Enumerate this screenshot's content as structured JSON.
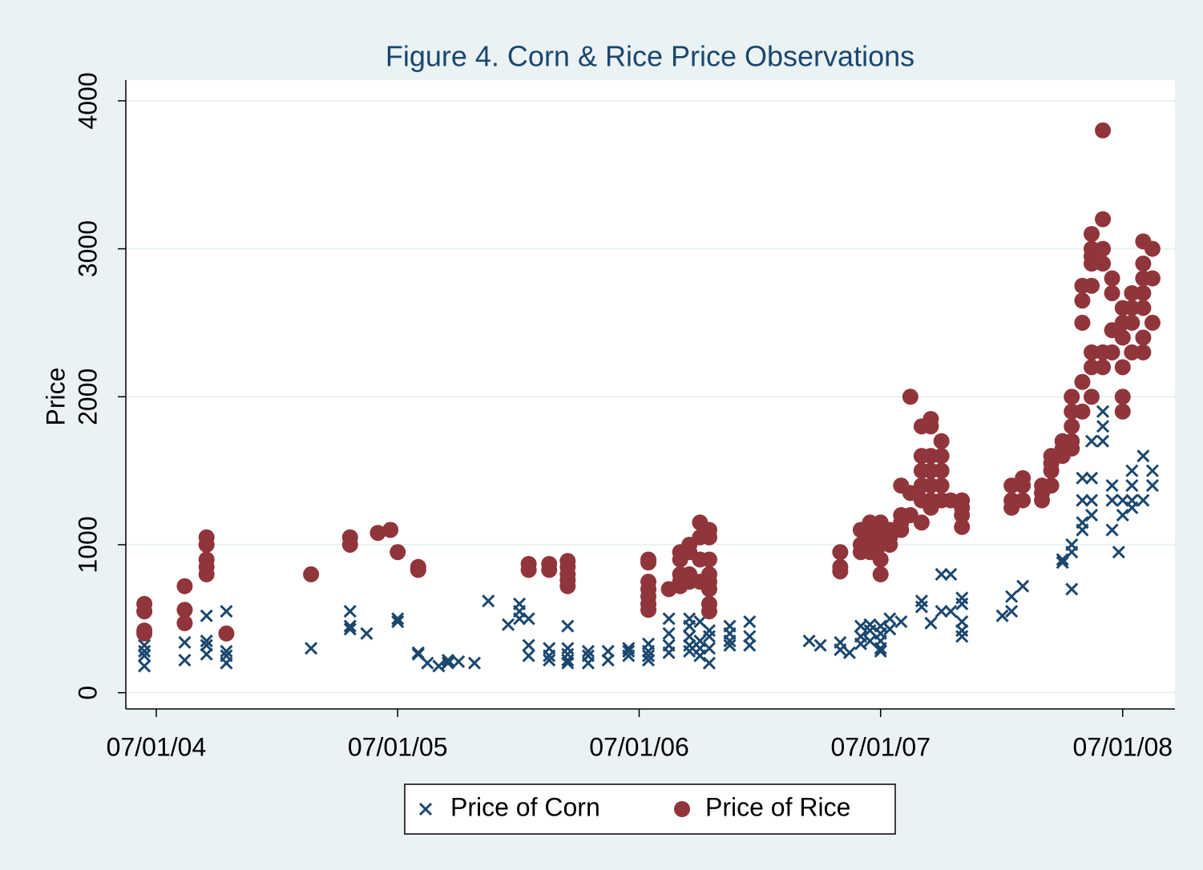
{
  "chart_data": {
    "type": "scatter",
    "title": "Figure 4. Corn & Rice Price Observations",
    "y_label": "Price",
    "xlim": [
      "2004-05-16",
      "2008-09-18"
    ],
    "ylim": [
      -110,
      4140
    ],
    "xticks": [
      {
        "value": "2004-07-01",
        "label": "07/01/04"
      },
      {
        "value": "2005-07-01",
        "label": "07/01/05"
      },
      {
        "value": "2006-07-01",
        "label": "07/01/06"
      },
      {
        "value": "2007-07-01",
        "label": "07/01/07"
      },
      {
        "value": "2008-07-01",
        "label": "07/01/08"
      }
    ],
    "yticks": [
      0,
      1000,
      2000,
      3000,
      4000
    ],
    "grid": true,
    "legend": "bottom",
    "series": [
      {
        "name": "Price of Corn",
        "color": "#1a476f",
        "marker": "x",
        "x": [
          "2004-06-13",
          "2004-06-13",
          "2004-06-13",
          "2004-06-13",
          "2004-08-13",
          "2004-08-13",
          "2004-09-15",
          "2004-09-15",
          "2004-09-15",
          "2004-09-15",
          "2004-10-15",
          "2004-10-15",
          "2004-10-15",
          "2004-10-15",
          "2005-02-20",
          "2005-04-20",
          "2005-04-20",
          "2005-04-20",
          "2005-05-15",
          "2005-07-01",
          "2005-07-01",
          "2005-08-01",
          "2005-08-01",
          "2005-08-15",
          "2005-09-01",
          "2005-09-15",
          "2005-09-15",
          "2005-10-01",
          "2005-10-25",
          "2005-11-15",
          "2005-12-15",
          "2006-01-01",
          "2006-01-01",
          "2006-01-01",
          "2006-01-15",
          "2006-01-15",
          "2006-01-15",
          "2006-02-15",
          "2006-02-15",
          "2006-02-15",
          "2006-03-15",
          "2006-03-15",
          "2006-03-15",
          "2006-03-15",
          "2006-03-15",
          "2006-04-15",
          "2006-04-15",
          "2006-04-15",
          "2006-05-15",
          "2006-05-15",
          "2006-06-15",
          "2006-06-15",
          "2006-06-15",
          "2006-07-15",
          "2006-07-15",
          "2006-07-15",
          "2006-07-15",
          "2006-08-15",
          "2006-08-15",
          "2006-08-15",
          "2006-08-15",
          "2006-09-15",
          "2006-09-15",
          "2006-09-15",
          "2006-09-15",
          "2006-09-15",
          "2006-10-01",
          "2006-10-01",
          "2006-10-01",
          "2006-10-01",
          "2006-10-15",
          "2006-10-15",
          "2006-10-15",
          "2006-10-15",
          "2006-11-15",
          "2006-11-15",
          "2006-11-15",
          "2006-11-15",
          "2006-12-15",
          "2006-12-15",
          "2006-12-15",
          "2007-03-15",
          "2007-04-01",
          "2007-05-01",
          "2007-05-01",
          "2007-05-15",
          "2007-06-01",
          "2007-06-01",
          "2007-06-01",
          "2007-06-15",
          "2007-06-15",
          "2007-06-15",
          "2007-07-01",
          "2007-07-01",
          "2007-07-01",
          "2007-07-01",
          "2007-07-01",
          "2007-07-15",
          "2007-07-15",
          "2007-08-01",
          "2007-09-01",
          "2007-09-01",
          "2007-09-15",
          "2007-10-01",
          "2007-10-01",
          "2007-10-15",
          "2007-10-15",
          "2007-11-01",
          "2007-11-01",
          "2007-11-01",
          "2007-11-01",
          "2007-11-01",
          "2008-01-01",
          "2008-01-15",
          "2008-01-15",
          "2008-02-01",
          "2008-04-01",
          "2008-04-01",
          "2008-04-15",
          "2008-04-15",
          "2008-04-15",
          "2008-05-01",
          "2008-05-01",
          "2008-05-01",
          "2008-05-01",
          "2008-05-15",
          "2008-05-15",
          "2008-05-15",
          "2008-05-15",
          "2008-06-01",
          "2008-06-01",
          "2008-06-01",
          "2008-06-01",
          "2008-06-15",
          "2008-06-15",
          "2008-06-15",
          "2008-06-25",
          "2008-07-01",
          "2008-07-01",
          "2008-07-15",
          "2008-07-15",
          "2008-07-15",
          "2008-07-15",
          "2008-08-01",
          "2008-08-01",
          "2008-08-15",
          "2008-08-15"
        ],
        "values": [
          320,
          280,
          250,
          180,
          340,
          220,
          520,
          350,
          320,
          260,
          550,
          280,
          250,
          200,
          300,
          550,
          450,
          430,
          400,
          500,
          480,
          270,
          260,
          200,
          180,
          220,
          200,
          210,
          200,
          620,
          460,
          600,
          550,
          500,
          500,
          320,
          250,
          300,
          250,
          220,
          450,
          300,
          260,
          220,
          200,
          280,
          250,
          200,
          280,
          220,
          300,
          280,
          250,
          330,
          280,
          250,
          220,
          500,
          400,
          320,
          270,
          500,
          450,
          380,
          320,
          280,
          480,
          350,
          300,
          250,
          420,
          380,
          300,
          200,
          450,
          400,
          350,
          320,
          480,
          380,
          320,
          350,
          320,
          340,
          290,
          270,
          450,
          380,
          330,
          460,
          420,
          350,
          450,
          400,
          350,
          300,
          280,
          500,
          430,
          480,
          620,
          580,
          470,
          800,
          550,
          800,
          550,
          640,
          600,
          480,
          420,
          380,
          520,
          650,
          550,
          720,
          900,
          880,
          1000,
          950,
          700,
          1450,
          1300,
          1150,
          1100,
          1700,
          1450,
          1300,
          1200,
          2200,
          1900,
          1800,
          1700,
          1400,
          1300,
          1100,
          950,
          1300,
          1200,
          1500,
          1400,
          1300,
          1250,
          1600,
          1300,
          1500,
          1400
        ]
      },
      {
        "name": "Price of Rice",
        "color": "#90353b",
        "marker": "circle",
        "x": [
          "2004-06-13",
          "2004-06-13",
          "2004-06-13",
          "2004-06-13",
          "2004-08-13",
          "2004-08-13",
          "2004-08-13",
          "2004-09-15",
          "2004-09-15",
          "2004-09-15",
          "2004-09-15",
          "2004-09-15",
          "2004-10-15",
          "2005-02-20",
          "2005-04-20",
          "2005-04-20",
          "2005-06-01",
          "2005-06-20",
          "2005-07-01",
          "2005-08-01",
          "2005-08-01",
          "2006-01-15",
          "2006-01-15",
          "2006-02-15",
          "2006-02-15",
          "2006-03-15",
          "2006-03-15",
          "2006-03-15",
          "2006-03-15",
          "2006-03-15",
          "2006-07-15",
          "2006-07-15",
          "2006-07-15",
          "2006-07-15",
          "2006-07-15",
          "2006-07-15",
          "2006-07-15",
          "2006-08-15",
          "2006-09-01",
          "2006-09-01",
          "2006-09-01",
          "2006-09-01",
          "2006-09-01",
          "2006-09-15",
          "2006-09-15",
          "2006-09-15",
          "2006-09-15",
          "2006-10-01",
          "2006-10-01",
          "2006-10-01",
          "2006-10-01",
          "2006-10-15",
          "2006-10-15",
          "2006-10-15",
          "2006-10-15",
          "2006-10-15",
          "2006-10-15",
          "2006-10-15",
          "2006-10-15",
          "2007-05-01",
          "2007-05-01",
          "2007-05-01",
          "2007-06-01",
          "2007-06-01",
          "2007-06-01",
          "2007-06-15",
          "2007-06-15",
          "2007-06-15",
          "2007-06-15",
          "2007-07-01",
          "2007-07-01",
          "2007-07-01",
          "2007-07-01",
          "2007-07-01",
          "2007-07-15",
          "2007-07-15",
          "2007-07-15",
          "2007-08-01",
          "2007-08-01",
          "2007-08-01",
          "2007-08-01",
          "2007-08-15",
          "2007-08-15",
          "2007-08-15",
          "2007-09-01",
          "2007-09-01",
          "2007-09-01",
          "2007-09-01",
          "2007-09-01",
          "2007-09-01",
          "2007-09-15",
          "2007-09-15",
          "2007-09-15",
          "2007-09-15",
          "2007-09-15",
          "2007-09-15",
          "2007-09-15",
          "2007-10-01",
          "2007-10-01",
          "2007-10-01",
          "2007-10-01",
          "2007-10-01",
          "2007-10-15",
          "2007-11-01",
          "2007-11-01",
          "2007-11-01",
          "2007-11-01",
          "2008-01-15",
          "2008-01-15",
          "2008-01-15",
          "2008-02-01",
          "2008-02-01",
          "2008-02-01",
          "2008-03-01",
          "2008-03-01",
          "2008-03-01",
          "2008-03-15",
          "2008-03-15",
          "2008-03-15",
          "2008-03-15",
          "2008-04-01",
          "2008-04-01",
          "2008-04-01",
          "2008-04-15",
          "2008-04-15",
          "2008-04-15",
          "2008-04-15",
          "2008-04-15",
          "2008-05-01",
          "2008-05-01",
          "2008-05-01",
          "2008-05-01",
          "2008-05-01",
          "2008-05-15",
          "2008-05-15",
          "2008-05-15",
          "2008-05-15",
          "2008-05-15",
          "2008-05-15",
          "2008-05-15",
          "2008-05-15",
          "2008-06-01",
          "2008-06-01",
          "2008-06-01",
          "2008-06-01",
          "2008-06-01",
          "2008-06-01",
          "2008-06-15",
          "2008-06-15",
          "2008-06-15",
          "2008-06-15",
          "2008-07-01",
          "2008-07-01",
          "2008-07-01",
          "2008-07-01",
          "2008-07-01",
          "2008-07-01",
          "2008-07-15",
          "2008-07-15",
          "2008-07-15",
          "2008-07-15",
          "2008-08-01",
          "2008-08-01",
          "2008-08-01",
          "2008-08-01",
          "2008-08-01",
          "2008-08-01",
          "2008-08-01",
          "2008-08-15",
          "2008-08-15",
          "2008-08-15"
        ],
        "values": [
          600,
          550,
          420,
          400,
          720,
          560,
          470,
          1050,
          1000,
          900,
          850,
          800,
          400,
          800,
          1050,
          1000,
          1080,
          1100,
          950,
          850,
          830,
          870,
          830,
          870,
          830,
          890,
          850,
          800,
          760,
          720,
          900,
          880,
          750,
          700,
          650,
          600,
          560,
          700,
          950,
          900,
          800,
          750,
          720,
          1000,
          950,
          800,
          750,
          1150,
          1050,
          900,
          750,
          1100,
          1050,
          900,
          800,
          750,
          700,
          600,
          550,
          950,
          850,
          820,
          1100,
          1000,
          950,
          1150,
          1050,
          1000,
          950,
          1150,
          1100,
          1000,
          900,
          800,
          1100,
          1050,
          1000,
          1400,
          1200,
          1150,
          1100,
          2000,
          1350,
          1200,
          1800,
          1600,
          1500,
          1400,
          1300,
          1150,
          1850,
          1800,
          1600,
          1500,
          1400,
          1300,
          1250,
          1700,
          1600,
          1500,
          1400,
          1300,
          1300,
          1300,
          1250,
          1200,
          1120,
          1400,
          1300,
          1250,
          1450,
          1400,
          1300,
          1400,
          1350,
          1300,
          1600,
          1550,
          1500,
          1400,
          1700,
          1650,
          1600,
          2000,
          1900,
          1800,
          1700,
          1650,
          2750,
          2650,
          2500,
          2100,
          1900,
          3100,
          3000,
          2950,
          2900,
          2750,
          2300,
          2200,
          2000,
          3800,
          3200,
          3000,
          2900,
          2300,
          2200,
          2800,
          2700,
          2450,
          2300,
          2600,
          2500,
          2400,
          2200,
          2000,
          1900,
          2700,
          2600,
          2500,
          2300,
          3050,
          2900,
          2800,
          2700,
          2600,
          2400,
          2300,
          3000,
          2800,
          2500
        ]
      }
    ]
  }
}
